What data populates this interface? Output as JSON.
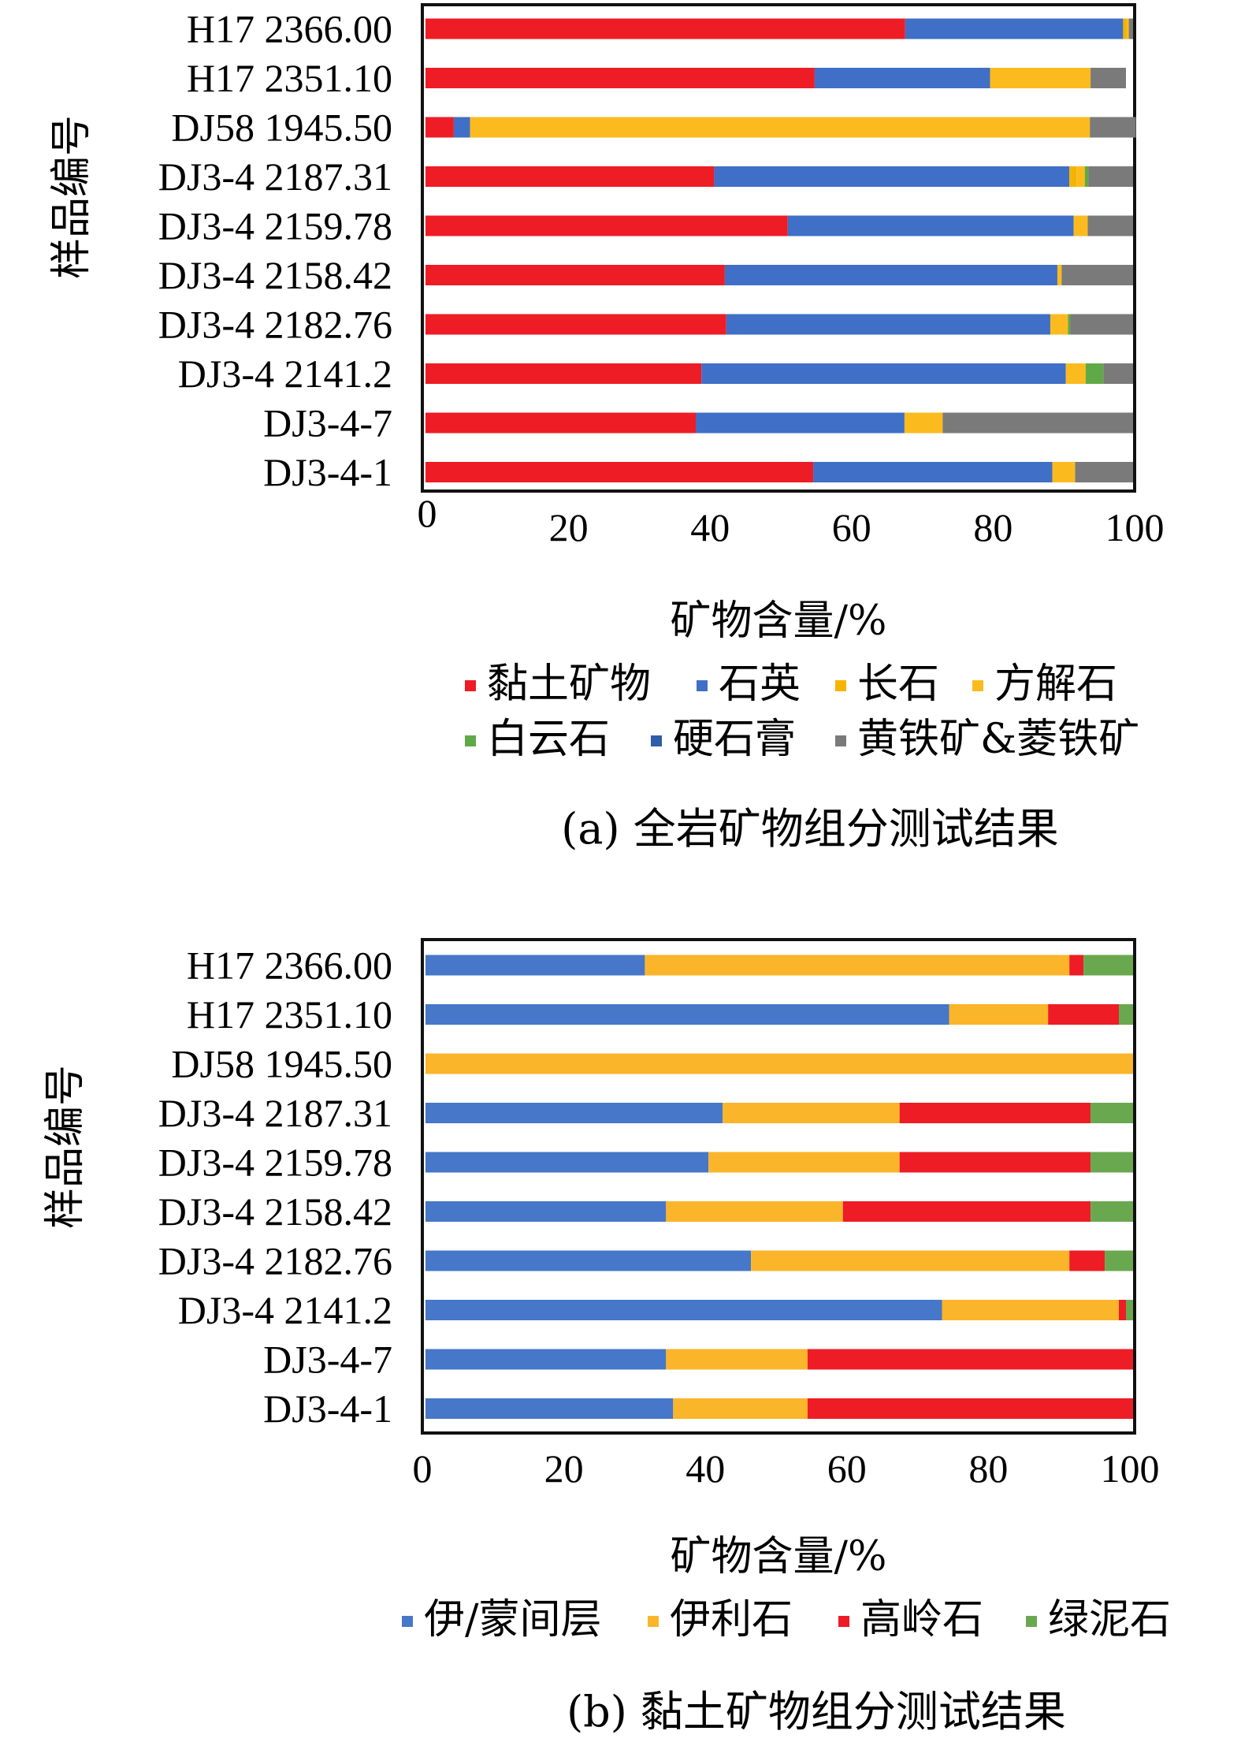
{
  "chart_data": [
    {
      "type": "bar",
      "orientation": "horizontal",
      "stacked": true,
      "caption": "(a) 全岩矿物组分测试结果",
      "xlabel": "矿物含量/%",
      "ylabel": "样品编号",
      "xlim": [
        0,
        100
      ],
      "xticks": [
        "0",
        "20",
        "40",
        "60",
        "80",
        "100"
      ],
      "grid": false,
      "legend_position": "bottom",
      "categories": [
        "H17 2366.00",
        "H17 2351.10",
        "DJ58 1945.50",
        "DJ3-4 2187.31",
        "DJ3-4 2159.78",
        "DJ3-4 2158.42",
        "DJ3-4 2182.76",
        "DJ3-4 2141.2",
        "DJ3-4-7",
        "DJ3-4-1"
      ],
      "series": [
        {
          "name": "黏土矿物",
          "color": "#ee1c25",
          "values": [
            67.8,
            55.0,
            4.0,
            40.8,
            51.2,
            42.3,
            42.5,
            39.0,
            38.2,
            54.8
          ]
        },
        {
          "name": "石英",
          "color": "#3f6fc6",
          "values": [
            30.8,
            24.8,
            2.3,
            50.2,
            40.4,
            47.0,
            45.8,
            51.5,
            29.5,
            33.8
          ]
        },
        {
          "name": "长石",
          "color": "#f5b400",
          "values": [
            0.6,
            0.0,
            0.0,
            1.0,
            0.0,
            0.0,
            0.0,
            0.0,
            0.0,
            0.0
          ]
        },
        {
          "name": "方解石",
          "color": "#fbbb1e",
          "values": [
            0.2,
            14.2,
            87.6,
            1.2,
            2.0,
            0.6,
            2.5,
            2.8,
            5.4,
            3.2
          ]
        },
        {
          "name": "白云石",
          "color": "#5faa46",
          "values": [
            0.0,
            0.0,
            0.0,
            0.5,
            0.0,
            0.0,
            0.3,
            2.5,
            0.0,
            0.0
          ]
        },
        {
          "name": "硬石膏",
          "color": "#2e5ea8",
          "values": [
            0.0,
            0.0,
            0.0,
            0.0,
            0.0,
            0.0,
            0.0,
            0.0,
            0.0,
            0.0
          ]
        },
        {
          "name": "黄铁矿&菱铁矿",
          "color": "#7a7a7a",
          "values": [
            0.6,
            5.0,
            6.5,
            6.3,
            6.4,
            10.1,
            8.9,
            4.2,
            26.9,
            8.2
          ]
        }
      ]
    },
    {
      "type": "bar",
      "orientation": "horizontal",
      "stacked": true,
      "caption": "(b) 黏土矿物组分测试结果",
      "xlabel": "矿物含量/%",
      "ylabel": "样品编号",
      "xlim": [
        0,
        100
      ],
      "xticks": [
        "0",
        "20",
        "40",
        "60",
        "80",
        "100"
      ],
      "grid": false,
      "legend_position": "bottom",
      "categories": [
        "H17 2366.00",
        "H17 2351.10",
        "DJ58 1945.50",
        "DJ3-4 2187.31",
        "DJ3-4 2159.78",
        "DJ3-4 2158.42",
        "DJ3-4 2182.76",
        "DJ3-4 2141.2",
        "DJ3-4-7",
        "DJ3-4-1"
      ],
      "series": [
        {
          "name": "伊/蒙间层",
          "color": "#4677c8",
          "values": [
            31.0,
            74.0,
            0.0,
            42.0,
            40.0,
            34.0,
            46.0,
            73.0,
            34.0,
            35.0
          ]
        },
        {
          "name": "伊利石",
          "color": "#fbb52a",
          "values": [
            60.0,
            14.0,
            100.0,
            25.0,
            27.0,
            25.0,
            45.0,
            25.0,
            20.0,
            19.0
          ]
        },
        {
          "name": "高岭石",
          "color": "#ee1c25",
          "values": [
            2.0,
            10.0,
            0.0,
            27.0,
            27.0,
            35.0,
            5.0,
            1.0,
            46.0,
            46.0
          ]
        },
        {
          "name": "绿泥石",
          "color": "#6aa84f",
          "values": [
            7.0,
            2.0,
            0.0,
            6.0,
            6.0,
            6.0,
            4.0,
            1.0,
            0.0,
            0.0
          ]
        }
      ]
    }
  ]
}
